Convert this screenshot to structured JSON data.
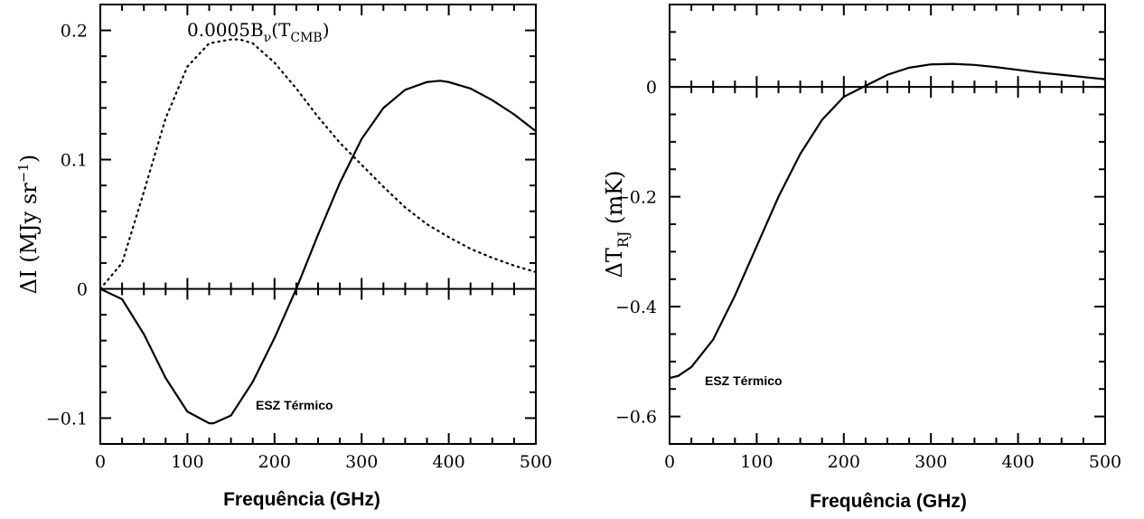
{
  "chart_data": [
    {
      "type": "line",
      "xlabel": "Frequência (GHz)",
      "ylabel": "ΔI (MJy sr⁻¹)",
      "ylabel_parts": {
        "main": "ΔI  (MJy sr",
        "sup": "−1",
        "close": ")"
      },
      "xlim": [
        0,
        500
      ],
      "ylim": [
        -0.12,
        0.22
      ],
      "x_ticks": [
        "0",
        "100",
        "200",
        "300",
        "400",
        "500"
      ],
      "y_ticks": [
        "-0.1",
        "0",
        "0.1",
        "0.2"
      ],
      "y_tick_display": [
        "−0.1",
        "0",
        "0.1",
        "0.2"
      ],
      "series": [
        {
          "label": "ESZ Térmico",
          "style": "solid",
          "x": [
            0,
            25,
            50,
            75,
            100,
            125,
            130,
            150,
            175,
            200,
            225,
            250,
            275,
            300,
            325,
            350,
            375,
            390,
            400,
            425,
            450,
            475,
            500
          ],
          "y": [
            0,
            -0.008,
            -0.035,
            -0.069,
            -0.095,
            -0.104,
            -0.104,
            -0.098,
            -0.072,
            -0.038,
            0.0,
            0.042,
            0.082,
            0.116,
            0.14,
            0.154,
            0.16,
            0.161,
            0.16,
            0.155,
            0.146,
            0.135,
            0.122
          ]
        },
        {
          "label": "0.0005B_ν(T_CMB)",
          "style": "dotted",
          "x": [
            0,
            25,
            50,
            75,
            100,
            125,
            150,
            160,
            175,
            200,
            225,
            250,
            275,
            300,
            325,
            350,
            375,
            400,
            425,
            450,
            475,
            500
          ],
          "y": [
            0,
            0.02,
            0.075,
            0.132,
            0.172,
            0.19,
            0.193,
            0.193,
            0.19,
            0.175,
            0.155,
            0.133,
            0.113,
            0.096,
            0.079,
            0.063,
            0.05,
            0.04,
            0.031,
            0.024,
            0.018,
            0.013
          ]
        }
      ],
      "annotations": [
        {
          "text": "ESZ Térmico"
        },
        {
          "text": "0.0005B",
          "sub1": "ν",
          "mid": "(T",
          "sub2": "CMB",
          "close": ")"
        }
      ]
    },
    {
      "type": "line",
      "xlabel": "Frequência (GHz)",
      "ylabel": "ΔT_RJ (mK)",
      "ylabel_parts": {
        "main": "ΔT",
        "sub": "RJ",
        "rest": "  (mK)"
      },
      "xlim": [
        0,
        500
      ],
      "ylim": [
        -0.65,
        0.15
      ],
      "x_ticks": [
        "0",
        "100",
        "200",
        "300",
        "400",
        "500"
      ],
      "y_ticks": [
        "-0.6",
        "-0.4",
        "-0.2",
        "0"
      ],
      "y_tick_display": [
        "−0.6",
        "−0.4",
        "−0.2",
        "0"
      ],
      "series": [
        {
          "label": "ESZ Térmico",
          "style": "solid",
          "x": [
            0,
            10,
            25,
            50,
            75,
            100,
            125,
            150,
            175,
            200,
            225,
            250,
            275,
            300,
            325,
            350,
            375,
            400,
            425,
            450,
            475,
            500
          ],
          "y": [
            -0.53,
            -0.526,
            -0.51,
            -0.46,
            -0.38,
            -0.29,
            -0.2,
            -0.122,
            -0.06,
            -0.018,
            0.002,
            0.022,
            0.035,
            0.041,
            0.042,
            0.04,
            0.036,
            0.031,
            0.026,
            0.022,
            0.018,
            0.014
          ]
        }
      ],
      "annotations": [
        {
          "text": "ESZ Térmico"
        }
      ]
    }
  ]
}
